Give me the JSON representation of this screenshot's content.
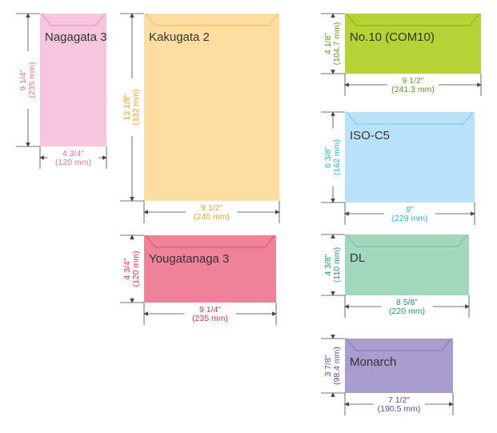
{
  "envelopes": [
    {
      "name": "Nagagata 3",
      "height": "9 1/4\"",
      "height_mm": "(235 mm)",
      "width": "4 3/4\"",
      "width_mm": "(120 mm)"
    },
    {
      "name": "Kakugata 2",
      "height": "13 1/8\"",
      "height_mm": "(332 mm)",
      "width": "9 1/2\"",
      "width_mm": "(240 mm)"
    },
    {
      "name": "Yougatanaga 3",
      "height": "4 3/4\"",
      "height_mm": "(120 mm)",
      "width": "9 1/4\"",
      "width_mm": "(235 mm)"
    },
    {
      "name": "No.10 (COM10)",
      "height": "4 1/8\"",
      "height_mm": "(104.7 mm)",
      "width": "9 1/2\"",
      "width_mm": "(241.3 mm)"
    },
    {
      "name": "ISO-C5",
      "height": "6 3/8\"",
      "height_mm": "(162 mm)",
      "width": "9\"",
      "width_mm": "(229 mm)"
    },
    {
      "name": "DL",
      "height": "4 3/8\"",
      "height_mm": "(110 mm)",
      "width": "8 5/8\"",
      "width_mm": "(220 mm)"
    },
    {
      "name": "Monarch",
      "height": "3 7/8\"",
      "height_mm": "(98.4 mm)",
      "width": "7 1/2\"",
      "width_mm": "(190.5 mm)"
    }
  ]
}
